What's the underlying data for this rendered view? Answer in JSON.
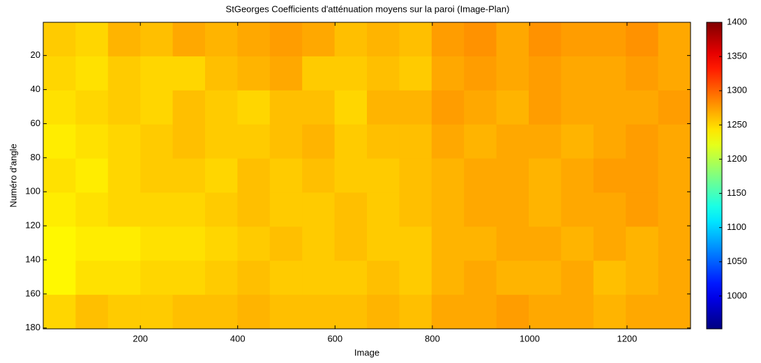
{
  "chart_data": {
    "type": "heatmap",
    "title": "StGeorges  Coefficients d'atténuation moyens sur la paroi (Image-Plan)",
    "xlabel": "Image",
    "ylabel": "Numéro d'angle",
    "colormap": "jet",
    "xlim": [
      0.5,
      1330.5
    ],
    "ylim": [
      0.5,
      180.5
    ],
    "y_reversed": true,
    "xticks": [
      200,
      400,
      600,
      800,
      1000,
      1200
    ],
    "yticks": [
      20,
      40,
      60,
      80,
      100,
      120,
      140,
      160,
      180
    ],
    "clim": [
      952,
      1400
    ],
    "cticks": [
      1000,
      1050,
      1100,
      1150,
      1200,
      1250,
      1300,
      1350,
      1400
    ],
    "z": [
      [
        1255,
        1250,
        1265,
        1260,
        1270,
        1265,
        1270,
        1275,
        1270,
        1260,
        1265,
        1260,
        1275,
        1280,
        1270,
        1280,
        1275,
        1275,
        1280,
        1270
      ],
      [
        1250,
        1245,
        1255,
        1250,
        1250,
        1260,
        1265,
        1270,
        1255,
        1255,
        1260,
        1255,
        1270,
        1275,
        1270,
        1275,
        1270,
        1270,
        1275,
        1270
      ],
      [
        1245,
        1250,
        1255,
        1250,
        1260,
        1255,
        1250,
        1260,
        1260,
        1250,
        1265,
        1265,
        1275,
        1270,
        1265,
        1275,
        1270,
        1270,
        1270,
        1275
      ],
      [
        1240,
        1245,
        1250,
        1255,
        1260,
        1255,
        1255,
        1260,
        1265,
        1255,
        1260,
        1260,
        1270,
        1265,
        1270,
        1270,
        1265,
        1270,
        1275,
        1270
      ],
      [
        1245,
        1240,
        1250,
        1255,
        1255,
        1250,
        1260,
        1255,
        1260,
        1255,
        1255,
        1260,
        1265,
        1270,
        1270,
        1265,
        1270,
        1275,
        1275,
        1270
      ],
      [
        1240,
        1245,
        1250,
        1250,
        1250,
        1255,
        1260,
        1255,
        1255,
        1260,
        1255,
        1260,
        1265,
        1270,
        1270,
        1265,
        1270,
        1270,
        1275,
        1270
      ],
      [
        1235,
        1240,
        1240,
        1245,
        1245,
        1250,
        1255,
        1260,
        1255,
        1260,
        1255,
        1255,
        1265,
        1265,
        1270,
        1270,
        1265,
        1270,
        1265,
        1270
      ],
      [
        1235,
        1245,
        1245,
        1250,
        1250,
        1255,
        1260,
        1255,
        1255,
        1255,
        1260,
        1255,
        1265,
        1270,
        1265,
        1265,
        1270,
        1260,
        1265,
        1270
      ],
      [
        1250,
        1260,
        1255,
        1255,
        1260,
        1260,
        1265,
        1260,
        1260,
        1260,
        1265,
        1260,
        1270,
        1270,
        1275,
        1270,
        1270,
        1265,
        1270,
        1270
      ]
    ]
  }
}
